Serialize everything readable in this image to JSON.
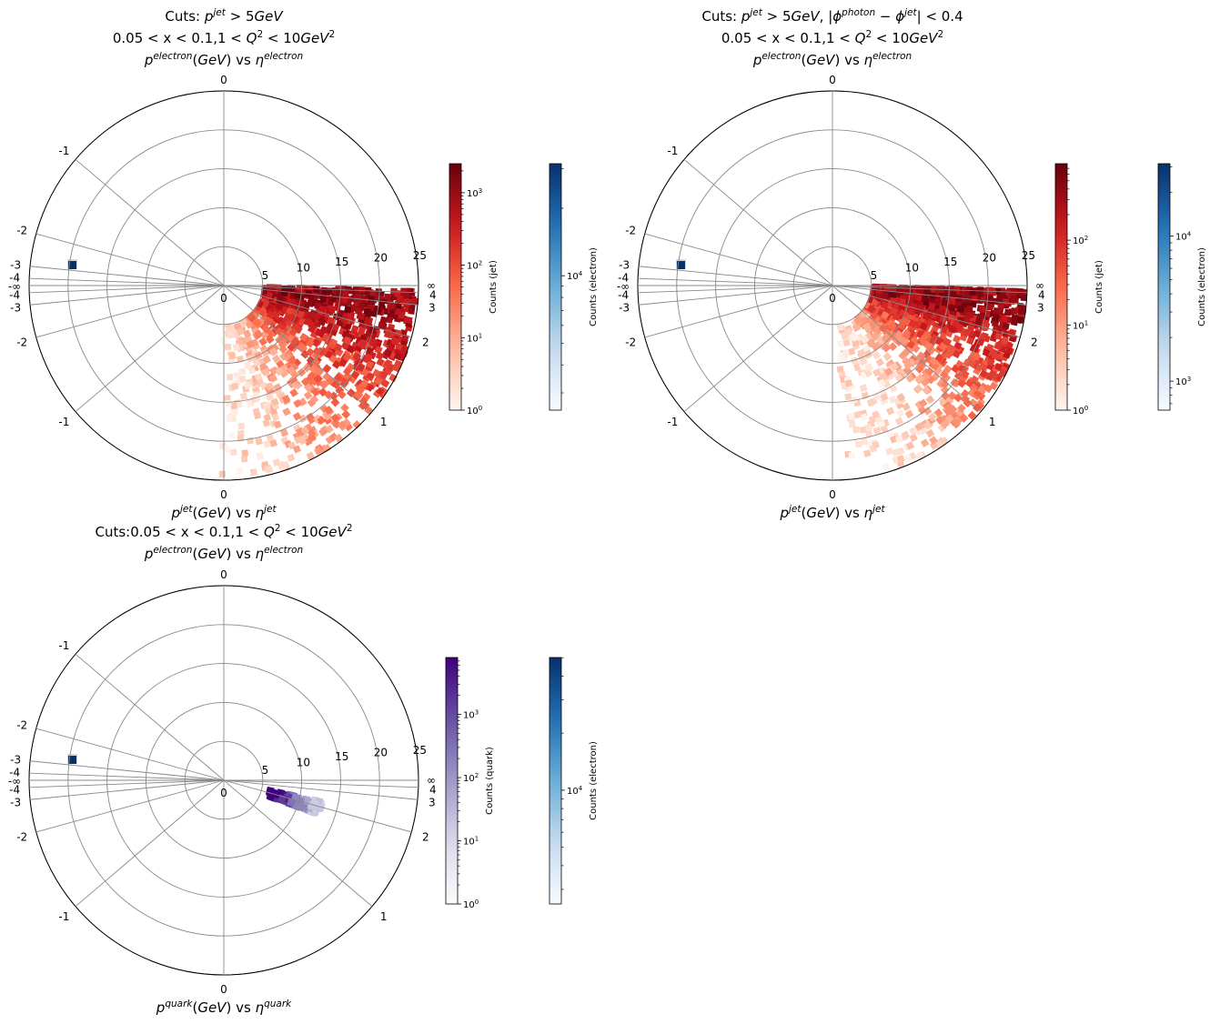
{
  "chart_data": [
    {
      "type": "heatmap",
      "title_lines": [
        {
          "runs": [
            {
              "t": "Cuts: "
            },
            {
              "t": "p",
              "i": true
            },
            {
              "t": "jet",
              "i": true,
              "sup": true
            },
            {
              "t": " > 5",
              "i": false
            },
            {
              "t": "GeV",
              "i": true
            }
          ]
        },
        {
          "runs": [
            {
              "t": "0.05 < x < 0.1,1 < "
            },
            {
              "t": "Q",
              "i": true
            },
            {
              "t": "2",
              "sup": true
            },
            {
              "t": " < 10"
            },
            {
              "t": "GeV",
              "i": true
            },
            {
              "t": "2",
              "sup": true
            }
          ]
        },
        {
          "runs": [
            {
              "t": "p",
              "i": true
            },
            {
              "t": "electron",
              "i": true,
              "sup": true
            },
            {
              "t": "("
            },
            {
              "t": "GeV",
              "i": true
            },
            {
              "t": ") vs "
            },
            {
              "t": "η",
              "i": true
            },
            {
              "t": "electron",
              "i": true,
              "sup": true
            }
          ]
        }
      ],
      "xlabel": {
        "runs": [
          {
            "t": "p",
            "i": true
          },
          {
            "t": "jet",
            "i": true,
            "sup": true
          },
          {
            "t": "("
          },
          {
            "t": "GeV",
            "i": true
          },
          {
            "t": ") vs "
          },
          {
            "t": "η",
            "i": true
          },
          {
            "t": "jet",
            "i": true,
            "sup": true
          }
        ]
      },
      "radial_ticks": [
        0,
        5,
        10,
        15,
        20,
        25
      ],
      "radial_range": [
        0,
        25
      ],
      "eta_labels_upper": [
        "0",
        "-1",
        "-2",
        "-3",
        "-4",
        "-∞"
      ],
      "eta_labels_lower": [
        "-4",
        "-3",
        "-2",
        "-1",
        "0"
      ],
      "eta_labels_right": [
        "∞",
        "4",
        "3",
        "2",
        "1"
      ],
      "eta_label_values": [
        0,
        -1,
        -2,
        -3,
        -4,
        4,
        3,
        2,
        1
      ],
      "electron_spot": {
        "eta": -3.1,
        "p": 20
      },
      "jet_distribution": {
        "eta_range": [
          0,
          4
        ],
        "p_range": [
          5,
          25
        ],
        "color": "#b00000"
      },
      "colorbars": [
        {
          "label": "Counts (jet)",
          "cmap": "Reds",
          "scale": "log",
          "ticks": [
            {
              "base": "10",
              "exp": "0"
            },
            {
              "base": "10",
              "exp": "1"
            },
            {
              "base": "10",
              "exp": "2"
            },
            {
              "base": "10",
              "exp": "3"
            }
          ],
          "range_exp": [
            0,
            3.4
          ]
        },
        {
          "label": "Counts (electron)",
          "cmap": "Blues",
          "scale": "log",
          "ticks": [
            {
              "base": "10",
              "exp": "4"
            }
          ],
          "range_exp": [
            3.4,
            4.5
          ]
        }
      ]
    },
    {
      "type": "heatmap",
      "title_lines": [
        {
          "runs": [
            {
              "t": "Cuts: "
            },
            {
              "t": "p",
              "i": true
            },
            {
              "t": "jet",
              "i": true,
              "sup": true
            },
            {
              "t": " > 5"
            },
            {
              "t": "GeV",
              "i": true
            },
            {
              "t": ", |"
            },
            {
              "t": "ϕ",
              "i": true
            },
            {
              "t": "photon",
              "i": true,
              "sup": true
            },
            {
              "t": " − "
            },
            {
              "t": "ϕ",
              "i": true
            },
            {
              "t": "jet",
              "i": true,
              "sup": true
            },
            {
              "t": "| < 0.4"
            }
          ]
        },
        {
          "runs": [
            {
              "t": "0.05 < x < 0.1,1 < "
            },
            {
              "t": "Q",
              "i": true
            },
            {
              "t": "2",
              "sup": true
            },
            {
              "t": " < 10"
            },
            {
              "t": "GeV",
              "i": true
            },
            {
              "t": "2",
              "sup": true
            }
          ]
        },
        {
          "runs": [
            {
              "t": "p",
              "i": true
            },
            {
              "t": "electron",
              "i": true,
              "sup": true
            },
            {
              "t": "("
            },
            {
              "t": "GeV",
              "i": true
            },
            {
              "t": ") vs "
            },
            {
              "t": "η",
              "i": true
            },
            {
              "t": "electron",
              "i": true,
              "sup": true
            }
          ]
        }
      ],
      "xlabel": {
        "runs": [
          {
            "t": "p",
            "i": true
          },
          {
            "t": "jet",
            "i": true,
            "sup": true
          },
          {
            "t": "("
          },
          {
            "t": "GeV",
            "i": true
          },
          {
            "t": ") vs "
          },
          {
            "t": "η",
            "i": true
          },
          {
            "t": "jet",
            "i": true,
            "sup": true
          }
        ]
      },
      "radial_ticks": [
        0,
        5,
        10,
        15,
        20,
        25
      ],
      "radial_range": [
        0,
        25
      ],
      "eta_labels_upper": [
        "0",
        "-1",
        "-2",
        "-3",
        "-4",
        "-∞"
      ],
      "eta_labels_lower": [
        "-4",
        "-3",
        "-2",
        "-1",
        "0"
      ],
      "eta_labels_right": [
        "∞",
        "4",
        "3",
        "2",
        "1"
      ],
      "eta_label_values": [
        0,
        -1,
        -2,
        -3,
        -4,
        4,
        3,
        2,
        1
      ],
      "electron_spot": {
        "eta": -3.1,
        "p": 20
      },
      "jet_distribution": {
        "eta_range": [
          0.5,
          4
        ],
        "p_range": [
          5,
          25
        ],
        "color": "#b00000"
      },
      "colorbars": [
        {
          "label": "Counts (jet)",
          "cmap": "Reds",
          "scale": "log",
          "ticks": [
            {
              "base": "10",
              "exp": "0"
            },
            {
              "base": "10",
              "exp": "1"
            },
            {
              "base": "10",
              "exp": "2"
            }
          ],
          "range_exp": [
            0,
            2.9
          ]
        },
        {
          "label": "Counts (electron)",
          "cmap": "Blues",
          "scale": "log",
          "ticks": [
            {
              "base": "10",
              "exp": "3"
            },
            {
              "base": "10",
              "exp": "4"
            }
          ],
          "range_exp": [
            2.8,
            4.5
          ]
        }
      ]
    },
    {
      "type": "heatmap",
      "title_lines": [
        {
          "runs": [
            {
              "t": "Cuts:0.05 < x < 0.1,1 < "
            },
            {
              "t": "Q",
              "i": true
            },
            {
              "t": "2",
              "sup": true
            },
            {
              "t": " < 10"
            },
            {
              "t": "GeV",
              "i": true
            },
            {
              "t": "2",
              "sup": true
            }
          ]
        },
        {
          "runs": [
            {
              "t": "p",
              "i": true
            },
            {
              "t": "electron",
              "i": true,
              "sup": true
            },
            {
              "t": "("
            },
            {
              "t": "GeV",
              "i": true
            },
            {
              "t": ") vs "
            },
            {
              "t": "η",
              "i": true
            },
            {
              "t": "electron",
              "i": true,
              "sup": true
            }
          ]
        }
      ],
      "xlabel": {
        "runs": [
          {
            "t": "p",
            "i": true
          },
          {
            "t": "quark",
            "i": true,
            "sup": true
          },
          {
            "t": "("
          },
          {
            "t": "GeV",
            "i": true
          },
          {
            "t": ") vs "
          },
          {
            "t": "η",
            "i": true
          },
          {
            "t": "quark",
            "i": true,
            "sup": true
          }
        ]
      },
      "radial_ticks": [
        0,
        5,
        10,
        15,
        20,
        25
      ],
      "radial_range": [
        0,
        25
      ],
      "eta_labels_upper": [
        "0",
        "-1",
        "-2",
        "-3",
        "-4",
        "-∞"
      ],
      "eta_labels_lower": [
        "-4",
        "-3",
        "-2",
        "-1",
        "0"
      ],
      "eta_labels_right": [
        "∞",
        "4",
        "3",
        "2",
        "1"
      ],
      "eta_label_values": [
        0,
        -1,
        -2,
        -3,
        -4,
        4,
        3,
        2,
        1
      ],
      "electron_spot": {
        "eta": -3.1,
        "p": 20
      },
      "quark_distribution": {
        "eta_range": [
          2.6,
          3.4
        ],
        "p_range": [
          5,
          11
        ],
        "color": "#4b0c8a"
      },
      "colorbars": [
        {
          "label": "Counts (quark)",
          "cmap": "Purples",
          "scale": "log",
          "ticks": [
            {
              "base": "10",
              "exp": "0"
            },
            {
              "base": "10",
              "exp": "1"
            },
            {
              "base": "10",
              "exp": "2"
            },
            {
              "base": "10",
              "exp": "3"
            }
          ],
          "range_exp": [
            0,
            3.9
          ]
        },
        {
          "label": "Counts (electron)",
          "cmap": "Blues",
          "scale": "log",
          "ticks": [
            {
              "base": "10",
              "exp": "4"
            }
          ],
          "range_exp": [
            3.4,
            4.7
          ]
        }
      ]
    }
  ]
}
